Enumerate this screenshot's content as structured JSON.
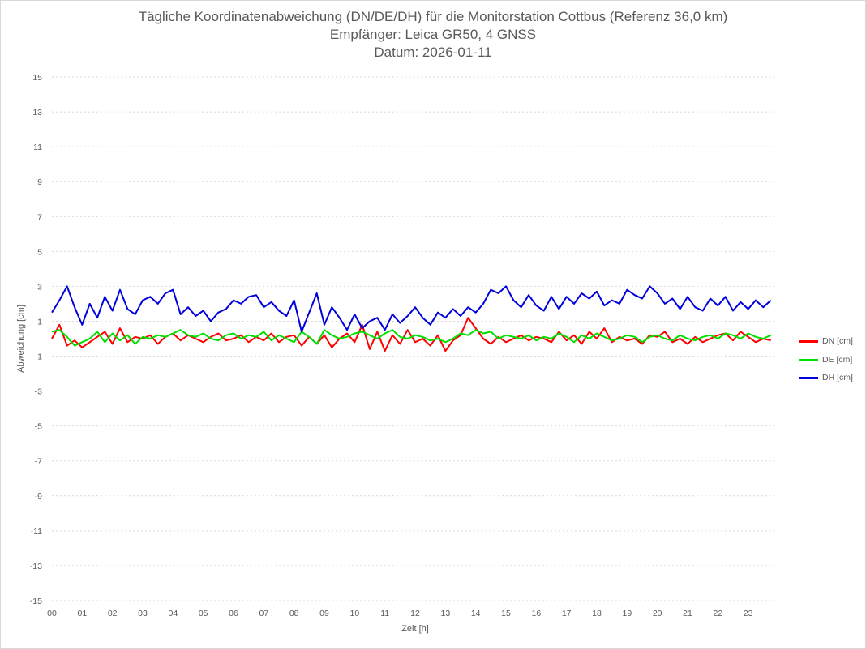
{
  "chart_data": {
    "type": "line",
    "title_lines": [
      "Tägliche Koordinatenabweichung (DN/DE/DH) für die Monitorstation Cottbus (Referenz 36,0 km)",
      "Empfänger: Leica GR50, 4 GNSS",
      "Datum: 2026-01-11"
    ],
    "xlabel": "Zeit [h]",
    "ylabel": "Abweichung [cm]",
    "xlim": [
      0,
      24
    ],
    "ylim": [
      -15,
      15
    ],
    "x_ticks": [
      "00",
      "01",
      "02",
      "03",
      "04",
      "05",
      "06",
      "07",
      "08",
      "09",
      "10",
      "11",
      "12",
      "13",
      "14",
      "15",
      "16",
      "17",
      "18",
      "19",
      "20",
      "21",
      "22",
      "23"
    ],
    "y_ticks": [
      15,
      13,
      11,
      9,
      7,
      5,
      3,
      1,
      -1,
      -3,
      -5,
      -7,
      -9,
      -11,
      -13,
      -15
    ],
    "grid": true,
    "legend_position": "right",
    "x": [
      0,
      0.25,
      0.5,
      0.75,
      1,
      1.25,
      1.5,
      1.75,
      2,
      2.25,
      2.5,
      2.75,
      3,
      3.25,
      3.5,
      3.75,
      4,
      4.25,
      4.5,
      4.75,
      5,
      5.25,
      5.5,
      5.75,
      6,
      6.25,
      6.5,
      6.75,
      7,
      7.25,
      7.5,
      7.75,
      8,
      8.25,
      8.5,
      8.75,
      9,
      9.25,
      9.5,
      9.75,
      10,
      10.25,
      10.5,
      10.75,
      11,
      11.25,
      11.5,
      11.75,
      12,
      12.25,
      12.5,
      12.75,
      13,
      13.25,
      13.5,
      13.75,
      14,
      14.25,
      14.5,
      14.75,
      15,
      15.25,
      15.5,
      15.75,
      16,
      16.25,
      16.5,
      16.75,
      17,
      17.25,
      17.5,
      17.75,
      18,
      18.25,
      18.5,
      18.75,
      19,
      19.25,
      19.5,
      19.75,
      20,
      20.25,
      20.5,
      20.75,
      21,
      21.25,
      21.5,
      21.75,
      22,
      22.25,
      22.5,
      22.75,
      23,
      23.25,
      23.5,
      23.75
    ],
    "series": [
      {
        "name": "DN [cm]",
        "color": "#ff0000",
        "values": [
          0.0,
          0.8,
          -0.4,
          -0.1,
          -0.5,
          -0.2,
          0.1,
          0.4,
          -0.3,
          0.6,
          -0.2,
          0.1,
          0.0,
          0.2,
          -0.3,
          0.1,
          0.3,
          -0.1,
          0.2,
          0.0,
          -0.2,
          0.1,
          0.3,
          -0.1,
          0.0,
          0.2,
          -0.2,
          0.1,
          -0.1,
          0.3,
          -0.2,
          0.1,
          0.2,
          -0.4,
          0.1,
          -0.3,
          0.2,
          -0.5,
          0.0,
          0.3,
          -0.2,
          0.8,
          -0.6,
          0.4,
          -0.7,
          0.2,
          -0.3,
          0.5,
          -0.2,
          0.0,
          -0.4,
          0.2,
          -0.7,
          -0.1,
          0.2,
          1.2,
          0.6,
          0.0,
          -0.3,
          0.1,
          -0.2,
          0.0,
          0.2,
          -0.1,
          0.1,
          0.0,
          -0.2,
          0.4,
          -0.1,
          0.2,
          -0.3,
          0.4,
          0.0,
          0.6,
          -0.2,
          0.1,
          -0.1,
          0.0,
          -0.3,
          0.2,
          0.1,
          0.4,
          -0.2,
          0.0,
          -0.3,
          0.1,
          -0.2,
          0.0,
          0.2,
          0.3,
          -0.1,
          0.4,
          0.1,
          -0.2,
          0.0,
          -0.1
        ]
      },
      {
        "name": "DE [cm]",
        "color": "#00e000",
        "values": [
          0.4,
          0.5,
          0.1,
          -0.4,
          -0.2,
          0.0,
          0.4,
          -0.2,
          0.3,
          -0.1,
          0.2,
          -0.3,
          0.1,
          0.0,
          0.2,
          0.1,
          0.3,
          0.5,
          0.2,
          0.1,
          0.3,
          0.0,
          -0.1,
          0.2,
          0.3,
          0.0,
          0.2,
          0.1,
          0.4,
          -0.1,
          0.2,
          0.0,
          -0.2,
          0.4,
          0.1,
          -0.3,
          0.5,
          0.2,
          0.0,
          0.1,
          0.3,
          0.4,
          0.2,
          0.0,
          0.3,
          0.5,
          0.1,
          0.0,
          0.2,
          0.1,
          -0.1,
          0.0,
          -0.2,
          0.0,
          0.3,
          0.2,
          0.5,
          0.3,
          0.4,
          0.0,
          0.2,
          0.1,
          0.0,
          0.2,
          -0.1,
          0.1,
          0.0,
          0.3,
          0.1,
          -0.2,
          0.2,
          0.0,
          0.3,
          0.1,
          -0.1,
          0.0,
          0.2,
          0.1,
          -0.2,
          0.1,
          0.2,
          0.0,
          -0.1,
          0.2,
          0.0,
          -0.1,
          0.1,
          0.2,
          0.0,
          0.3,
          0.2,
          0.0,
          0.3,
          0.1,
          0.0,
          0.2
        ]
      },
      {
        "name": "DH [cm]",
        "color": "#0000dd",
        "values": [
          1.5,
          2.2,
          3.0,
          1.8,
          0.8,
          2.0,
          1.2,
          2.4,
          1.6,
          2.8,
          1.7,
          1.4,
          2.2,
          2.4,
          2.0,
          2.6,
          2.8,
          1.4,
          1.8,
          1.3,
          1.6,
          1.0,
          1.5,
          1.7,
          2.2,
          2.0,
          2.4,
          2.5,
          1.8,
          2.1,
          1.6,
          1.3,
          2.2,
          0.4,
          1.5,
          2.6,
          0.8,
          1.8,
          1.2,
          0.5,
          1.4,
          0.6,
          1.0,
          1.2,
          0.5,
          1.4,
          0.9,
          1.3,
          1.8,
          1.2,
          0.8,
          1.5,
          1.2,
          1.7,
          1.3,
          1.8,
          1.5,
          2.0,
          2.8,
          2.6,
          3.0,
          2.2,
          1.8,
          2.5,
          1.9,
          1.6,
          2.4,
          1.7,
          2.4,
          2.0,
          2.6,
          2.3,
          2.7,
          1.9,
          2.2,
          2.0,
          2.8,
          2.5,
          2.3,
          3.0,
          2.6,
          2.0,
          2.3,
          1.7,
          2.4,
          1.8,
          1.6,
          2.3,
          1.9,
          2.4,
          1.6,
          2.1,
          1.7,
          2.2,
          1.8,
          2.2
        ]
      }
    ]
  }
}
